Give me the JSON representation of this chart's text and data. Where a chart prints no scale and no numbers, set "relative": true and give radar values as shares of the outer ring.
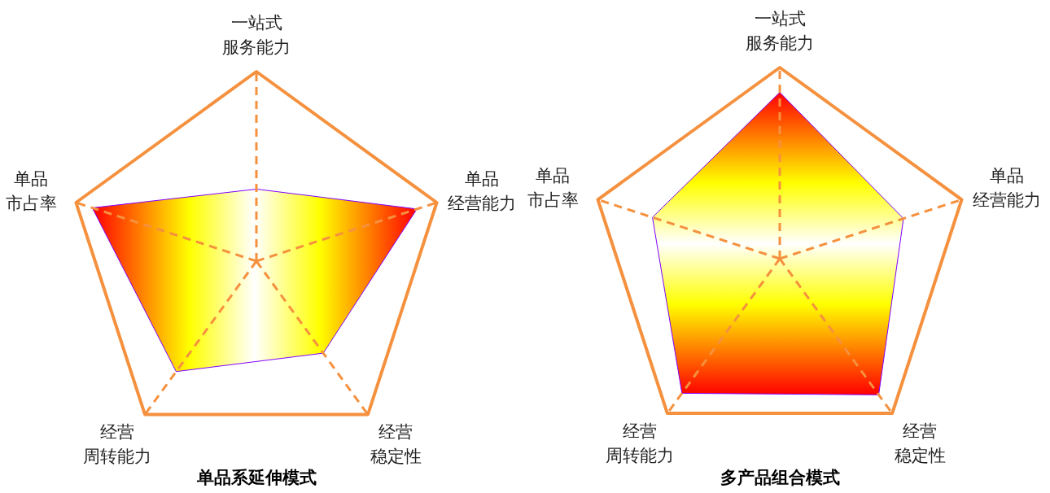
{
  "chart_data": [
    {
      "type": "radar",
      "title": "单品系延伸模式",
      "relative": true,
      "categories": [
        "一站式服务能力",
        "单品经营能力",
        "经营稳定性",
        "经营周转能力",
        "单品市占率"
      ],
      "series": [
        {
          "color": "#8000ff",
          "values": [
            0.38,
            0.89,
            0.6,
            0.72,
            0.91
          ]
        }
      ]
    },
    {
      "type": "radar",
      "title": "多产品组合模式",
      "relative": true,
      "categories": [
        "一站式服务能力",
        "单品经营能力",
        "经营稳定性",
        "经营周转能力",
        "单品市占率"
      ],
      "series": [
        {
          "color": "#8000ff",
          "values": [
            0.87,
            0.68,
            0.88,
            0.87,
            0.7
          ]
        }
      ]
    }
  ]
}
